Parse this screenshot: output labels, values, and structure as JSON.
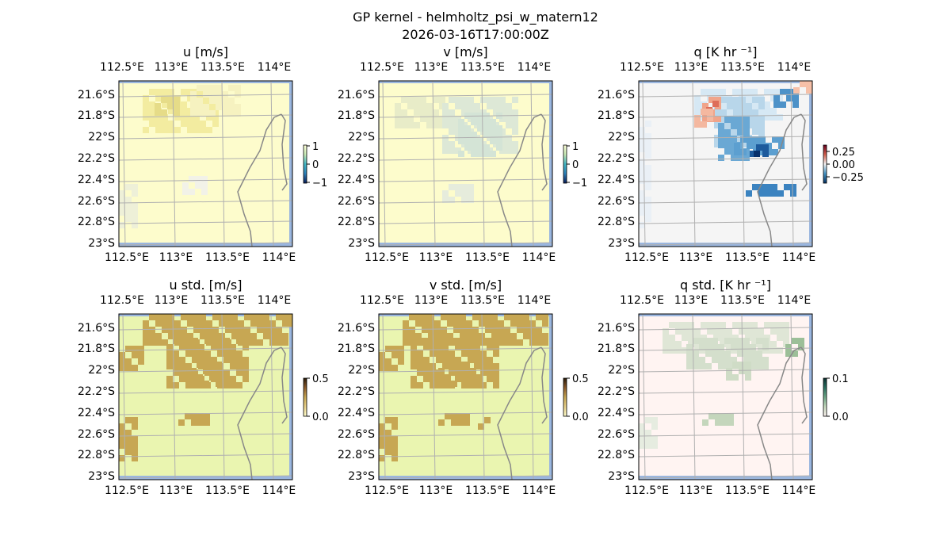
{
  "figure": {
    "title": "GP kernel - helmholtz_psi_w_matern12",
    "subtitle": "2026-03-16T17:00:00Z"
  },
  "axes": {
    "lon_labels": [
      "112.5°E",
      "113°E",
      "113.5°E",
      "114°E"
    ],
    "lat_labels": [
      "21.6°S",
      "21.8°S",
      "22°S",
      "22.2°S",
      "22.4°S",
      "22.6°S",
      "22.8°S",
      "23°S"
    ]
  },
  "panels": [
    {
      "title": "u [m/s]",
      "colorbar_ticks": [
        "1",
        "0",
        "−1"
      ],
      "colormap": "YlGnBu-like",
      "background": "#fdfccc"
    },
    {
      "title": "v [m/s]",
      "colorbar_ticks": [
        "1",
        "0",
        "−1"
      ],
      "colormap": "YlGnBu-like",
      "background": "#fdfccc"
    },
    {
      "title": "q [K hr ⁻¹]",
      "colorbar_ticks": [
        "0.25",
        "0.00",
        "−0.25"
      ],
      "colormap": "RdBu_r",
      "background": "#f5f5f5"
    },
    {
      "title": "u std. [m/s]",
      "colorbar_ticks": [
        "0.5",
        "0.0"
      ],
      "colormap": "earth",
      "background": "#eaf5b0"
    },
    {
      "title": "v std. [m/s]",
      "colorbar_ticks": [
        "0.5",
        "0.0"
      ],
      "colormap": "earth",
      "background": "#eaf5b0"
    },
    {
      "title": "q std. [K hr ⁻¹]",
      "colorbar_ticks": [
        "0.1",
        "0.0"
      ],
      "colormap": "green-pink",
      "background": "#fff4f2"
    }
  ]
}
